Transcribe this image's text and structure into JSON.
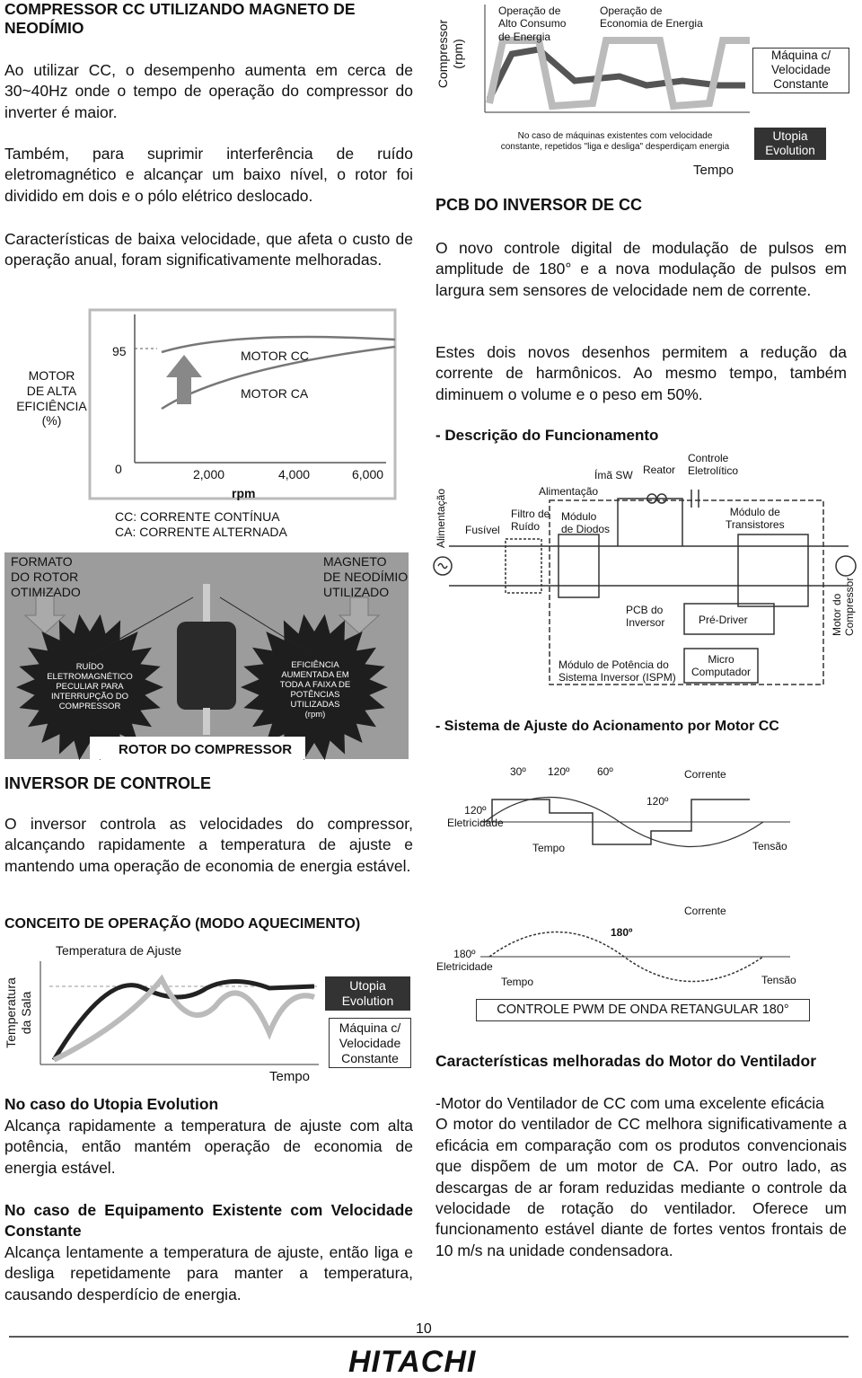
{
  "magnet": {
    "title": "COMPRESSOR CC UTILIZANDO MAGNETO DE NEODÍMIO",
    "paragraphs": [
      "Ao utilizar CC, o desempenho aumenta em cerca de 30~40Hz onde o tempo de operação do compressor do inverter é maior.",
      "Também, para suprimir interferência de ruído eletromagnético e alcançar um baixo nível, o rotor foi dividido em dois e o pólo elétrico deslocado.",
      "Características de baixa velocidade, que afeta o custo de operação anual, foram significativamente melhoradas."
    ]
  },
  "efficiency_chart": {
    "y_label": "MOTOR\nDE ALTA\nEFICIÊNCIA\n(%)",
    "y_top": "95",
    "y_bottom": "0",
    "x_ticks": [
      "2,000",
      "4,000",
      "6,000"
    ],
    "x_label": "rpm",
    "series": [
      "MOTOR CC",
      "MOTOR CA"
    ],
    "legend": [
      "CC: CORRENTE CONTÍNUA",
      "CA: CORRENTE ALTERNADA"
    ]
  },
  "rotor_figure": {
    "left_label": "FORMATO\nDO ROTOR\nOTIMIZADO",
    "right_label": "MAGNETO\nDE NEODÍMIO\nUTILIZADO",
    "left_burst": "RUÍDO\nELETROMAGNÉTICO\nPECULIAR PARA\nINTERRUPÇÃO DO\nCOMPRESSOR",
    "right_burst": "EFICIÊNCIA\nAUMENTADA EM\nTODA A FAIXA DE\nPOTÊNCIAS\nUTILIZADAS\n(rpm)",
    "caption": "ROTOR DO COMPRESSOR"
  },
  "inverter": {
    "title": "INVERSOR DE CONTROLE",
    "paragraph": "O inversor controla as velocidades do compressor, alcançando rapidamente a temperatura de ajuste e mantendo uma operação de economia de energia estável."
  },
  "concept": {
    "title": "CONCEITO DE OPERAÇÃO (MODO AQUECIMENTO)",
    "set_temp": "Temperatura de Ajuste",
    "y_label": "Temperatura\nda Sala",
    "x_label": "Tempo",
    "utopia": "Utopia\nEvolution",
    "constant": "Máquina c/\nVelocidade\nConstante"
  },
  "utopia_case": {
    "title": "No caso do Utopia Evolution",
    "text": "Alcança rapidamente a temperatura de ajuste com alta potência, então mantém operação de economia de energia estável."
  },
  "existing_case": {
    "title": "No caso de Equipamento Existente com Velocidade Constante",
    "text": "Alcança lentamente a temperatura de ajuste, então liga e desliga repetidamente para manter a temperatura, causando desperdício de energia."
  },
  "compressor_chart": {
    "y_label": "Compressor\n(rpm)",
    "high": "Operação de\nAlto Consumo\nde Energia",
    "economy": "Operação de\nEconomia de Energia",
    "constant": "Máquina c/\nVelocidade\nConstante",
    "note": "No caso de máquinas existentes com velocidade\nconstante, repetidos \"liga e desliga\" desperdiçam energia",
    "utopia": "Utopia\nEvolution",
    "x_label": "Tempo"
  },
  "pcb": {
    "title": "PCB DO INVERSOR DE CC",
    "paragraphs": [
      "O novo controle digital de modulação de pulsos em amplitude de 180° e a nova modulação de pulsos em largura sem sensores de velocidade nem de corrente.",
      "Estes dois novos desenhos permitem a redução da corrente de harmônicos. Ao mesmo tempo, também diminuem o volume e o peso em 50%."
    ],
    "description": "- Descrição do Funcionamento"
  },
  "circuit": {
    "capacitor": "Controle\nEletrolítico",
    "magnet_sw": "Ímã SW",
    "reactor": "Reator",
    "power": "Alimentação",
    "power_side": "Alimentação",
    "transistors": "Módulo de\nTransistores",
    "fuse": "Fusível",
    "filter": "Filtro de\nRuído",
    "diodes": "Módulo\nde Diodos",
    "pcb": "PCB do\nInversor",
    "predriver": "Pré-Driver",
    "motor": "Motor do\nCompressor",
    "ispm": "Módulo de Potência do\nSistema Inversor (ISPM)",
    "micro": "Micro\nComputador"
  },
  "adjust": {
    "title": "- Sistema de Ajuste do Acionamento por Motor CC",
    "wave1": {
      "a30": "30º",
      "a120": "120º",
      "a60": "60º",
      "current": "Corrente",
      "mid": "120º",
      "elec": "120º\nEletricidade",
      "time": "Tempo",
      "voltage": "Tensão"
    },
    "wave2": {
      "current": "Corrente",
      "mid": "180º",
      "elec": "180º\nEletricidade",
      "time": "Tempo",
      "voltage": "Tensão"
    },
    "pwm": "CONTROLE PWM DE ONDA RETANGULAR 180°"
  },
  "fan": {
    "title": "Características melhoradas do Motor do Ventilador",
    "text": "-Motor do Ventilador de CC com uma excelente eficácia\nO motor do ventilador de CC melhora significativamente a eficácia em comparação com os produtos convencionais que dispõem de um motor de CA. Por outro lado, as descargas de ar foram reduzidas mediante o controle da velocidade de rotação do ventilador. Oferece um funcionamento estável diante de fortes ventos frontais de 10 m/s na unidade condensadora."
  },
  "footer": {
    "page": "10",
    "brand": "HITACHI"
  }
}
